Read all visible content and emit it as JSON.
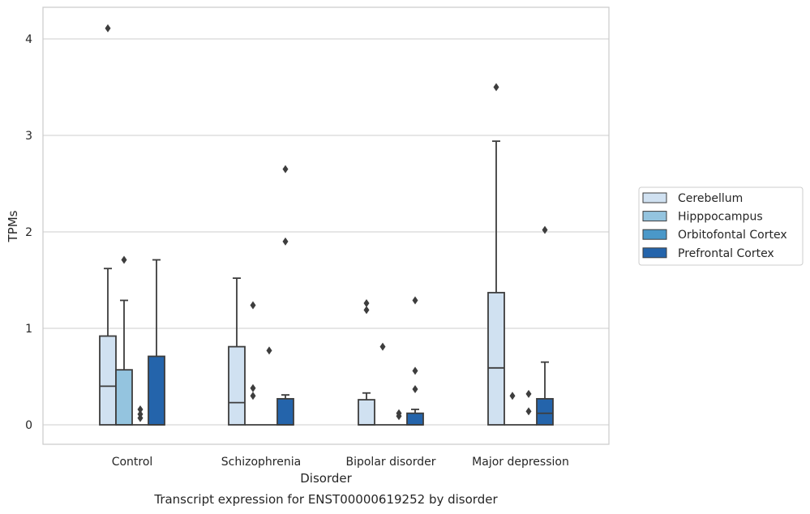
{
  "chart_data": {
    "type": "box",
    "title": "Transcript expression for ENST00000619252 by disorder",
    "xlabel": "Disorder",
    "ylabel": "TPMs",
    "ylim": [
      -0.2,
      4.32
    ],
    "yticks": [
      0,
      1,
      2,
      3,
      4
    ],
    "grid": "horizontal",
    "legend_position": "right",
    "categories": [
      "Control",
      "Schizophrenia",
      "Bipolar disorder",
      "Major depression"
    ],
    "series": [
      {
        "name": "Cerebellum",
        "color": "#d0e1f1",
        "boxes": [
          {
            "q1": 0,
            "median": 0.4,
            "q3": 0.92,
            "whisker_low": 0,
            "whisker_high": 1.62,
            "outliers": [
              4.11
            ]
          },
          {
            "q1": 0,
            "median": 0.23,
            "q3": 0.81,
            "whisker_low": 0,
            "whisker_high": 1.52,
            "outliers": []
          },
          {
            "q1": 0,
            "median": 0,
            "q3": 0.26,
            "whisker_low": 0,
            "whisker_high": 0.33,
            "outliers": [
              1.19,
              1.26
            ]
          },
          {
            "q1": 0,
            "median": 0.59,
            "q3": 1.37,
            "whisker_low": 0,
            "whisker_high": 2.94,
            "outliers": [
              3.5
            ]
          }
        ]
      },
      {
        "name": "Hipppocampus",
        "color": "#94c4df",
        "boxes": [
          {
            "q1": 0,
            "median": 0,
            "q3": 0.57,
            "whisker_low": 0,
            "whisker_high": 1.29,
            "outliers": [
              1.71
            ]
          },
          {
            "q1": 0,
            "median": 0,
            "q3": 0,
            "whisker_low": 0,
            "whisker_high": 0,
            "outliers": [
              0.3,
              0.38,
              1.24
            ]
          },
          {
            "q1": 0,
            "median": 0,
            "q3": 0,
            "whisker_low": 0,
            "whisker_high": 0,
            "outliers": [
              0.81
            ]
          },
          {
            "q1": 0,
            "median": 0,
            "q3": 0,
            "whisker_low": 0,
            "whisker_high": 0,
            "outliers": [
              0.3
            ]
          }
        ]
      },
      {
        "name": "Orbitofontal Cortex",
        "color": "#4a98c9",
        "boxes": [
          {
            "q1": 0,
            "median": 0,
            "q3": 0,
            "whisker_low": 0,
            "whisker_high": 0,
            "outliers": [
              0.07,
              0.11,
              0.16
            ]
          },
          {
            "q1": 0,
            "median": 0,
            "q3": 0,
            "whisker_low": 0,
            "whisker_high": 0,
            "outliers": [
              0.77
            ]
          },
          {
            "q1": 0,
            "median": 0,
            "q3": 0,
            "whisker_low": 0,
            "whisker_high": 0,
            "outliers": [
              0.09,
              0.12
            ]
          },
          {
            "q1": 0,
            "median": 0,
            "q3": 0,
            "whisker_low": 0,
            "whisker_high": 0,
            "outliers": [
              0.14,
              0.32
            ]
          }
        ]
      },
      {
        "name": "Prefrontal Cortex",
        "color": "#2464ab",
        "boxes": [
          {
            "q1": 0,
            "median": 0,
            "q3": 0.71,
            "whisker_low": 0,
            "whisker_high": 1.71,
            "outliers": []
          },
          {
            "q1": 0,
            "median": 0,
            "q3": 0.27,
            "whisker_low": 0,
            "whisker_high": 0.31,
            "outliers": [
              1.9,
              2.65
            ]
          },
          {
            "q1": 0,
            "median": 0,
            "q3": 0.12,
            "whisker_low": 0,
            "whisker_high": 0.16,
            "outliers": [
              0.37,
              0.56,
              1.29
            ]
          },
          {
            "q1": 0,
            "median": 0.12,
            "q3": 0.27,
            "whisker_low": 0,
            "whisker_high": 0.65,
            "outliers": [
              2.02
            ]
          }
        ]
      }
    ]
  }
}
